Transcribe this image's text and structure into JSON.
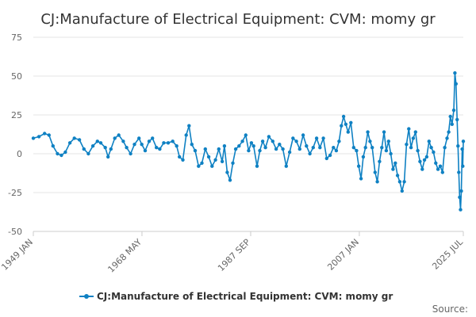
{
  "chart_data": {
    "type": "line",
    "title": "CJ:Manufacture of Electrical Equipment: CVM: momy gr",
    "xlabel": "",
    "ylabel": "",
    "ylim": [
      -50,
      75
    ],
    "yticks": [
      75,
      50,
      25,
      0,
      -25,
      -50
    ],
    "xlim": [
      1949.0,
      2025.5
    ],
    "xticks": [
      {
        "value": 1949.0,
        "label": "1949 JAN"
      },
      {
        "value": 1968.33,
        "label": "1968 MAY"
      },
      {
        "value": 1987.67,
        "label": "1987 SEP"
      },
      {
        "value": 2007.0,
        "label": "2007 JAN"
      },
      {
        "value": 2025.5,
        "label": "2025 JUL"
      }
    ],
    "grid": true,
    "legend_position": "bottom",
    "series": [
      {
        "name": "CJ:Manufacture of Electrical Equipment: CVM: momy gr",
        "color": "#0f81c3",
        "points": [
          [
            1949.0,
            10
          ],
          [
            1950.0,
            11
          ],
          [
            1951.0,
            13
          ],
          [
            1951.8,
            12
          ],
          [
            1952.5,
            5
          ],
          [
            1953.3,
            0
          ],
          [
            1954.0,
            -1
          ],
          [
            1954.7,
            1
          ],
          [
            1955.5,
            7
          ],
          [
            1956.3,
            10
          ],
          [
            1957.2,
            9
          ],
          [
            1958.0,
            3
          ],
          [
            1958.8,
            0
          ],
          [
            1959.6,
            5
          ],
          [
            1960.4,
            8
          ],
          [
            1961.0,
            7
          ],
          [
            1961.8,
            4
          ],
          [
            1962.3,
            -2
          ],
          [
            1962.8,
            3
          ],
          [
            1963.5,
            10
          ],
          [
            1964.2,
            12
          ],
          [
            1965.0,
            8
          ],
          [
            1965.6,
            4
          ],
          [
            1966.3,
            0
          ],
          [
            1967.0,
            6
          ],
          [
            1967.8,
            10
          ],
          [
            1968.3,
            6
          ],
          [
            1968.9,
            2
          ],
          [
            1969.6,
            8
          ],
          [
            1970.2,
            10
          ],
          [
            1970.9,
            4
          ],
          [
            1971.5,
            3
          ],
          [
            1972.2,
            7
          ],
          [
            1973.0,
            7
          ],
          [
            1973.8,
            8
          ],
          [
            1974.5,
            5
          ],
          [
            1975.0,
            -2
          ],
          [
            1975.6,
            -4
          ],
          [
            1976.2,
            12
          ],
          [
            1976.7,
            18
          ],
          [
            1977.2,
            6
          ],
          [
            1977.8,
            2
          ],
          [
            1978.4,
            -8
          ],
          [
            1979.0,
            -6
          ],
          [
            1979.6,
            3
          ],
          [
            1980.2,
            -2
          ],
          [
            1980.8,
            -8
          ],
          [
            1981.4,
            -4
          ],
          [
            1982.0,
            3
          ],
          [
            1982.6,
            -5
          ],
          [
            1983.0,
            5
          ],
          [
            1983.5,
            -12
          ],
          [
            1984.0,
            -17
          ],
          [
            1984.5,
            -6
          ],
          [
            1985.0,
            3
          ],
          [
            1985.6,
            5
          ],
          [
            1986.2,
            8
          ],
          [
            1986.8,
            12
          ],
          [
            1987.3,
            2
          ],
          [
            1987.8,
            7
          ],
          [
            1988.2,
            5
          ],
          [
            1988.8,
            -8
          ],
          [
            1989.3,
            2
          ],
          [
            1989.8,
            8
          ],
          [
            1990.3,
            4
          ],
          [
            1990.9,
            11
          ],
          [
            1991.6,
            8
          ],
          [
            1992.2,
            3
          ],
          [
            1992.8,
            6
          ],
          [
            1993.4,
            3
          ],
          [
            1994.0,
            -8
          ],
          [
            1994.6,
            1
          ],
          [
            1995.2,
            10
          ],
          [
            1995.8,
            8
          ],
          [
            1996.4,
            3
          ],
          [
            1997.0,
            12
          ],
          [
            1997.6,
            5
          ],
          [
            1998.2,
            0
          ],
          [
            1998.8,
            4
          ],
          [
            1999.4,
            10
          ],
          [
            2000.0,
            4
          ],
          [
            2000.6,
            10
          ],
          [
            2001.2,
            -3
          ],
          [
            2001.8,
            -1
          ],
          [
            2002.4,
            4
          ],
          [
            2002.9,
            2
          ],
          [
            2003.4,
            8
          ],
          [
            2003.8,
            18
          ],
          [
            2004.2,
            24
          ],
          [
            2004.6,
            19
          ],
          [
            2005.0,
            14
          ],
          [
            2005.5,
            20
          ],
          [
            2006.0,
            4
          ],
          [
            2006.5,
            2
          ],
          [
            2006.9,
            -8
          ],
          [
            2007.3,
            -16
          ],
          [
            2007.7,
            -2
          ],
          [
            2008.1,
            4
          ],
          [
            2008.5,
            14
          ],
          [
            2008.9,
            8
          ],
          [
            2009.3,
            4
          ],
          [
            2009.8,
            -12
          ],
          [
            2010.2,
            -18
          ],
          [
            2010.6,
            -5
          ],
          [
            2011.0,
            4
          ],
          [
            2011.4,
            14
          ],
          [
            2011.8,
            2
          ],
          [
            2012.2,
            8
          ],
          [
            2012.6,
            0
          ],
          [
            2013.0,
            -10
          ],
          [
            2013.4,
            -6
          ],
          [
            2013.8,
            -14
          ],
          [
            2014.2,
            -18
          ],
          [
            2014.6,
            -24
          ],
          [
            2015.0,
            -18
          ],
          [
            2015.4,
            6
          ],
          [
            2015.8,
            16
          ],
          [
            2016.2,
            4
          ],
          [
            2016.6,
            10
          ],
          [
            2017.0,
            14
          ],
          [
            2017.4,
            2
          ],
          [
            2017.8,
            -5
          ],
          [
            2018.2,
            -10
          ],
          [
            2018.6,
            -4
          ],
          [
            2019.0,
            -2
          ],
          [
            2019.4,
            8
          ],
          [
            2019.8,
            4
          ],
          [
            2020.2,
            1
          ],
          [
            2020.6,
            -6
          ],
          [
            2021.0,
            -10
          ],
          [
            2021.4,
            -8
          ],
          [
            2021.8,
            -12
          ],
          [
            2022.2,
            4
          ],
          [
            2022.6,
            10
          ],
          [
            2022.9,
            14
          ],
          [
            2023.2,
            24
          ],
          [
            2023.5,
            19
          ],
          [
            2023.8,
            28
          ],
          [
            2024.0,
            52
          ],
          [
            2024.2,
            45
          ],
          [
            2024.4,
            22
          ],
          [
            2024.55,
            5
          ],
          [
            2024.7,
            -12
          ],
          [
            2024.85,
            -28
          ],
          [
            2025.0,
            -36
          ],
          [
            2025.15,
            -24
          ],
          [
            2025.3,
            3
          ],
          [
            2025.4,
            -8
          ],
          [
            2025.5,
            8
          ]
        ]
      }
    ]
  },
  "legend": {
    "label": "CJ:Manufacture of Electrical Equipment: CVM: momy gr"
  },
  "footer": {
    "source": "Source:"
  }
}
